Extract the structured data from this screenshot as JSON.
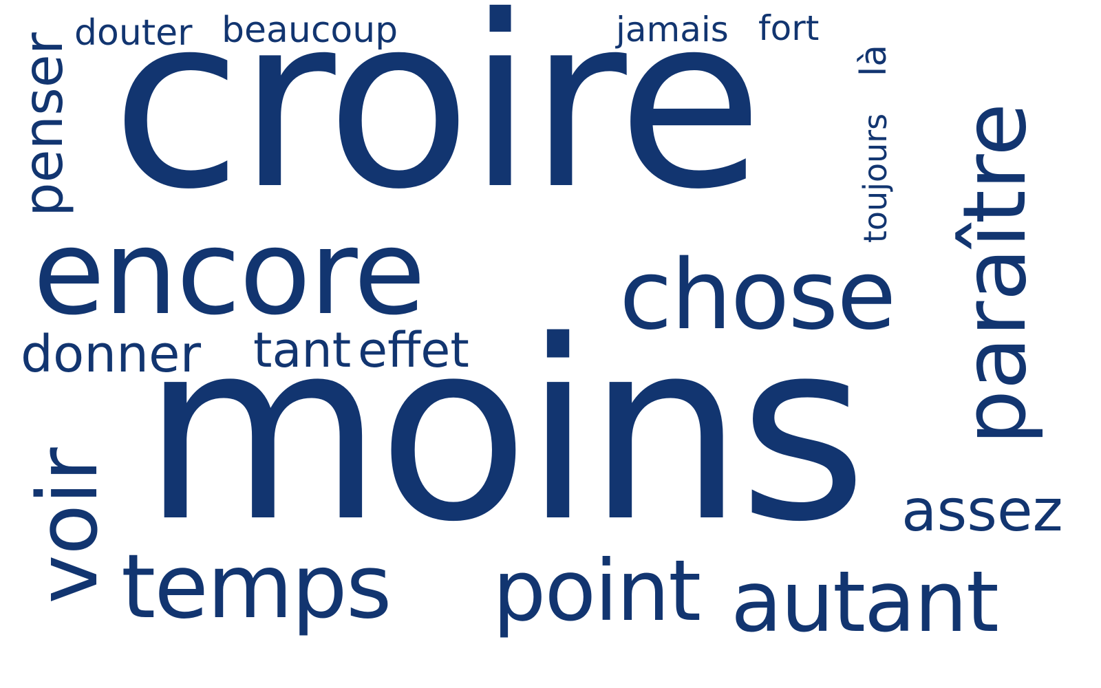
{
  "color": "#123570",
  "words": {
    "croire": "croire",
    "moins": "moins",
    "encore": "encore",
    "chose": "chose",
    "paraitre": "paraître",
    "penser": "penser",
    "voir": "voir",
    "temps": "temps",
    "point": "point",
    "autant": "autant",
    "assez": "assez",
    "donner": "donner",
    "tant": "tant",
    "effet": "effet",
    "douter": "douter",
    "beaucoup": "beaucoup",
    "jamais": "jamais",
    "fort": "fort",
    "la": "là",
    "toujours": "toujours"
  }
}
